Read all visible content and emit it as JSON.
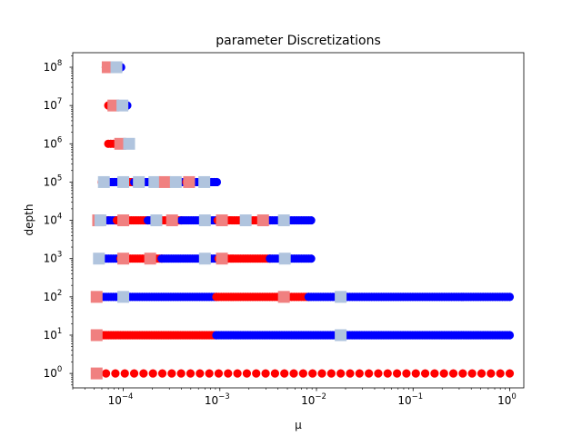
{
  "chart_data": {
    "type": "scatter",
    "title": "parameter Discretizations",
    "xlabel": "μ",
    "ylabel": "depth",
    "xscale": "log",
    "yscale": "log",
    "xlim": [
      3e-05,
      1.4
    ],
    "ylim": [
      0.42,
      240000000.0
    ],
    "x_ticks": [
      {
        "value": 0.0001,
        "mantissa": "10",
        "exponent": "−4"
      },
      {
        "value": 0.001,
        "mantissa": "10",
        "exponent": "−3"
      },
      {
        "value": 0.01,
        "mantissa": "10",
        "exponent": "−2"
      },
      {
        "value": 0.1,
        "mantissa": "10",
        "exponent": "−1"
      },
      {
        "value": 1,
        "mantissa": "10",
        "exponent": "0"
      }
    ],
    "y_ticks": [
      {
        "value": 1,
        "mantissa": "10",
        "exponent": "0"
      },
      {
        "value": 10,
        "mantissa": "10",
        "exponent": "1"
      },
      {
        "value": 100,
        "mantissa": "10",
        "exponent": "2"
      },
      {
        "value": 1000,
        "mantissa": "10",
        "exponent": "3"
      },
      {
        "value": 10000,
        "mantissa": "10",
        "exponent": "4"
      },
      {
        "value": 100000,
        "mantissa": "10",
        "exponent": "5"
      },
      {
        "value": 1000000,
        "mantissa": "10",
        "exponent": "6"
      },
      {
        "value": 10000000,
        "mantissa": "10",
        "exponent": "7"
      },
      {
        "value": 100000000,
        "mantissa": "10",
        "exponent": "8"
      }
    ],
    "colors": {
      "red_dots": "#ff0000",
      "blue_dots": "#0000ff",
      "red_squares": "#f08080",
      "blue_squares": "#b0c4de"
    },
    "rows": [
      {
        "depth": 1,
        "segments": [
          {
            "from": 5.3e-05,
            "to": 1.0,
            "color": "red"
          }
        ],
        "squares": [
          {
            "mu": 5.3e-05,
            "color": "red"
          }
        ]
      },
      {
        "depth": 10,
        "segments": [
          {
            "from": 5.3e-05,
            "to": 0.00092,
            "color": "red"
          },
          {
            "from": 0.00092,
            "to": 1.0,
            "color": "blue"
          }
        ],
        "squares": [
          {
            "mu": 5.3e-05,
            "color": "red"
          },
          {
            "mu": 0.0178,
            "color": "blue"
          }
        ]
      },
      {
        "depth": 100,
        "segments": [
          {
            "from": 5.3e-05,
            "to": 0.00092,
            "color": "blue"
          },
          {
            "from": 0.00092,
            "to": 0.0083,
            "color": "red"
          },
          {
            "from": 0.0083,
            "to": 1.0,
            "color": "blue"
          }
        ],
        "squares": [
          {
            "mu": 5.3e-05,
            "color": "red"
          },
          {
            "mu": 0.0001,
            "color": "blue"
          },
          {
            "mu": 0.0046,
            "color": "red"
          },
          {
            "mu": 0.0178,
            "color": "blue"
          }
        ]
      },
      {
        "depth": 1000,
        "segments": [
          {
            "from": 5.6e-05,
            "to": 9.4e-05,
            "color": "blue"
          },
          {
            "from": 9.4e-05,
            "to": 0.00025,
            "color": "red"
          },
          {
            "from": 0.00025,
            "to": 0.00097,
            "color": "blue"
          },
          {
            "from": 0.00097,
            "to": 0.0033,
            "color": "red"
          },
          {
            "from": 0.0033,
            "to": 0.0088,
            "color": "blue"
          }
        ],
        "squares": [
          {
            "mu": 5.6e-05,
            "color": "blue"
          },
          {
            "mu": 0.0001,
            "color": "red"
          },
          {
            "mu": 0.00019,
            "color": "red"
          },
          {
            "mu": 0.0007,
            "color": "blue"
          },
          {
            "mu": 0.00105,
            "color": "red"
          },
          {
            "mu": 0.0047,
            "color": "blue"
          }
        ]
      },
      {
        "depth": 10000,
        "segments": [
          {
            "from": 5.4e-05,
            "to": 7e-05,
            "color": "red"
          },
          {
            "from": 7e-05,
            "to": 8.6e-05,
            "color": "blue"
          },
          {
            "from": 8.6e-05,
            "to": 0.00018,
            "color": "red"
          },
          {
            "from": 0.00018,
            "to": 0.00024,
            "color": "blue"
          },
          {
            "from": 0.00024,
            "to": 0.0004,
            "color": "red"
          },
          {
            "from": 0.0004,
            "to": 0.00095,
            "color": "blue"
          },
          {
            "from": 0.00095,
            "to": 0.0033,
            "color": "red"
          },
          {
            "from": 0.0033,
            "to": 0.0088,
            "color": "blue"
          }
        ],
        "squares": [
          {
            "mu": 5.5e-05,
            "color": "red"
          },
          {
            "mu": 5.8e-05,
            "color": "blue"
          },
          {
            "mu": 0.0001,
            "color": "red"
          },
          {
            "mu": 0.00022,
            "color": "blue"
          },
          {
            "mu": 0.00032,
            "color": "red"
          },
          {
            "mu": 0.0007,
            "color": "blue"
          },
          {
            "mu": 0.00105,
            "color": "red"
          },
          {
            "mu": 0.00185,
            "color": "blue"
          },
          {
            "mu": 0.0028,
            "color": "red"
          },
          {
            "mu": 0.0046,
            "color": "blue"
          }
        ]
      },
      {
        "depth": 100000,
        "segments": [
          {
            "from": 6e-05,
            "to": 7.2e-05,
            "color": "red"
          },
          {
            "from": 7.2e-05,
            "to": 0.000115,
            "color": "blue"
          },
          {
            "from": 0.000115,
            "to": 0.00013,
            "color": "red"
          },
          {
            "from": 0.00013,
            "to": 0.00024,
            "color": "blue"
          },
          {
            "from": 0.00024,
            "to": 0.00028,
            "color": "red"
          },
          {
            "from": 0.00028,
            "to": 0.00045,
            "color": "blue"
          },
          {
            "from": 0.00045,
            "to": 0.00051,
            "color": "red"
          },
          {
            "from": 0.00051,
            "to": 0.00093,
            "color": "blue"
          }
        ],
        "squares": [
          {
            "mu": 6.3e-05,
            "color": "blue"
          },
          {
            "mu": 0.0001,
            "color": "blue"
          },
          {
            "mu": 0.000145,
            "color": "blue"
          },
          {
            "mu": 0.00021,
            "color": "blue"
          },
          {
            "mu": 0.00027,
            "color": "red"
          },
          {
            "mu": 0.00035,
            "color": "blue"
          },
          {
            "mu": 0.00048,
            "color": "red"
          },
          {
            "mu": 0.00069,
            "color": "blue"
          }
        ]
      },
      {
        "depth": 1000000,
        "segments": [
          {
            "from": 7e-05,
            "to": 0.0001,
            "color": "red"
          },
          {
            "from": 0.0001,
            "to": 0.000115,
            "color": "blue"
          }
        ],
        "squares": [
          {
            "mu": 9.3e-05,
            "color": "red"
          },
          {
            "mu": 0.000115,
            "color": "blue"
          }
        ]
      },
      {
        "depth": 10000000,
        "segments": [
          {
            "from": 7e-05,
            "to": 8e-05,
            "color": "red"
          },
          {
            "from": 8e-05,
            "to": 0.00011,
            "color": "blue"
          }
        ],
        "squares": [
          {
            "mu": 7.9e-05,
            "color": "red"
          },
          {
            "mu": 9.8e-05,
            "color": "blue"
          }
        ]
      },
      {
        "depth": 100000000,
        "segments": [
          {
            "from": 6.6e-05,
            "to": 7.5e-05,
            "color": "red"
          },
          {
            "from": 7.5e-05,
            "to": 9.5e-05,
            "color": "blue"
          }
        ],
        "squares": [
          {
            "mu": 6.9e-05,
            "color": "red"
          },
          {
            "mu": 8.5e-05,
            "color": "blue"
          }
        ]
      }
    ]
  }
}
